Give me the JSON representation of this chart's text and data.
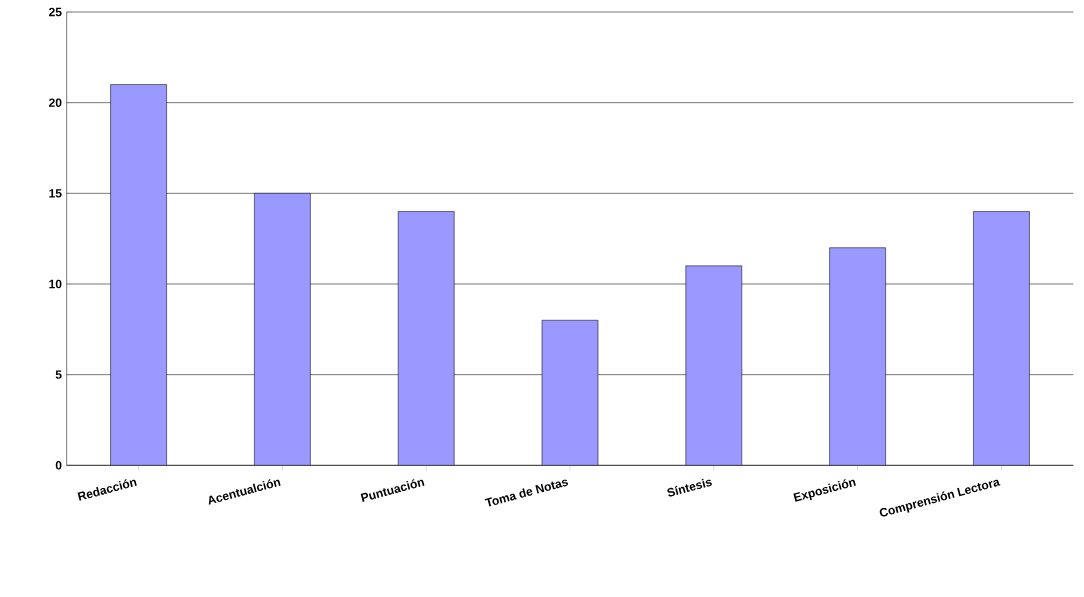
{
  "chart_data": {
    "type": "bar",
    "categories": [
      "Redacción",
      "Acentualción",
      "Puntuación",
      "Toma de Notas",
      "Síntesis",
      "Exposición",
      "Comprensión Lectora"
    ],
    "values": [
      21,
      15,
      14,
      8,
      11,
      12,
      14
    ],
    "color": "#9999ff",
    "ylim": [
      0,
      25
    ],
    "yticks": [
      0,
      5,
      10,
      15,
      20,
      25
    ],
    "grid": "y"
  }
}
